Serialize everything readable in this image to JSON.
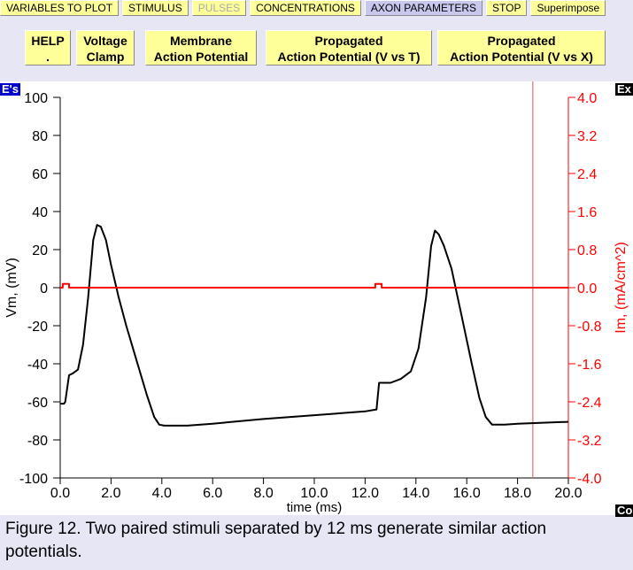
{
  "toolbar": {
    "items": [
      {
        "label": "VARIABLES TO PLOT"
      },
      {
        "label": "STIMULUS"
      },
      {
        "label": "PULSES"
      },
      {
        "label": "CONCENTRATIONS"
      },
      {
        "label": "AXON PARAMETERS"
      },
      {
        "label": "STOP"
      },
      {
        "label": "Superimpose"
      }
    ]
  },
  "buttons": {
    "help_1": "HELP",
    "help_2": ".",
    "vclamp_1": "Voltage",
    "vclamp_2": "Clamp",
    "map_1": "Membrane",
    "map_2": "Action Potential",
    "prop_vt_1": "Propagated",
    "prop_vt_2": "Action Potential (V vs T)",
    "prop_vx_1": "Propagated",
    "prop_vx_2": "Action Potential (V vs X)"
  },
  "side_tags": {
    "left": "E's",
    "right_top": "Ex",
    "right_bottom": "Co"
  },
  "caption": "Figure 12. Two paired stimuli separated by 12 ms generate similar action potentials.",
  "colors": {
    "vm": "#000000",
    "im": "#ff0000",
    "cursor": "#e07070",
    "button": "#ffff99"
  },
  "chart_data": {
    "type": "line",
    "xlabel": "time (ms)",
    "ylabel_left": "Vm, (mV)",
    "ylabel_right": "Im, (mA/cm^2)",
    "xlim": [
      0,
      20
    ],
    "ylim_left": [
      -100,
      100
    ],
    "ylim_right": [
      -4.0,
      4.0
    ],
    "x_ticks": [
      "0.0",
      "2.0",
      "4.0",
      "6.0",
      "8.0",
      "10.0",
      "12.0",
      "14.0",
      "16.0",
      "18.0",
      "20.0"
    ],
    "y_ticks_left": [
      "100",
      "80",
      "60",
      "40",
      "20",
      "0",
      "-20",
      "-40",
      "-60",
      "-80",
      "-100"
    ],
    "y_ticks_right": [
      "4.0",
      "3.2",
      "2.4",
      "1.6",
      "0.8",
      "0.0",
      "-0.8",
      "-1.6",
      "-2.4",
      "-3.2",
      "-4.0"
    ],
    "cursor_x": 18.6,
    "series": [
      {
        "axis": "left",
        "x": [
          0.0,
          0.15,
          0.2,
          0.35,
          0.5,
          0.7,
          0.9,
          1.1,
          1.3,
          1.45,
          1.6,
          1.8,
          2.0,
          2.3,
          2.6,
          3.0,
          3.4,
          3.7,
          3.9,
          4.1,
          4.5,
          5.0,
          6.0,
          8.0,
          10.0,
          12.0,
          12.45,
          12.55,
          12.7,
          13.0,
          13.4,
          13.8,
          14.1,
          14.4,
          14.6,
          14.75,
          14.9,
          15.1,
          15.4,
          15.8,
          16.2,
          16.5,
          16.75,
          17.0,
          17.5,
          18.0,
          19.0,
          20.0
        ],
        "y": [
          -61,
          -61,
          -60,
          -46,
          -45,
          -43,
          -30,
          -5,
          25,
          33,
          32,
          25,
          12,
          -5,
          -20,
          -38,
          -56,
          -68,
          -72,
          -72.5,
          -72.5,
          -72.5,
          -71.5,
          -69,
          -67,
          -65,
          -64,
          -50,
          -50,
          -50,
          -48,
          -44,
          -32,
          -5,
          22,
          30,
          28,
          22,
          10,
          -15,
          -40,
          -58,
          -68,
          -72,
          -72,
          -71.5,
          -71,
          -70.5
        ]
      },
      {
        "axis": "right",
        "x": [
          0.0,
          0.1,
          0.1,
          0.35,
          0.35,
          12.4,
          12.4,
          12.65,
          12.65,
          20.0
        ],
        "y": [
          0.0,
          0.0,
          0.08,
          0.08,
          0.0,
          0.0,
          0.08,
          0.08,
          0.0,
          0.0
        ]
      }
    ]
  }
}
